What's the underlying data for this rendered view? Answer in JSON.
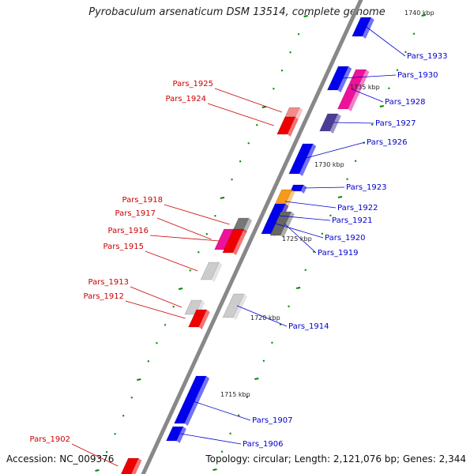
{
  "title": "Pyrobaculum arsenaticum DSM 13514, complete genome",
  "accession": "Accession: NC_009376",
  "topology": "Topology: circular; Length: 2,121,076 bp; Genes: 2,344",
  "colors": {
    "axis": "#888888",
    "forward_gene": "#0000ee",
    "reverse_gene": "#ee0000",
    "reverse_label": "#cc0000",
    "forward_label": "#0000cc",
    "tick": "#008800"
  },
  "kbp_marks": [
    "1740 kbp",
    "1735 kbp",
    "1730 kbp",
    "1725 kbp",
    "1720 kbp",
    "1715 kbp"
  ],
  "forward_genes": [
    {
      "label": "Pars_1933",
      "color": "#0000ee"
    },
    {
      "label": "Pars_1930",
      "color": "#0000ee"
    },
    {
      "label": "Pars_1928",
      "color": "#ee1199"
    },
    {
      "label": "Pars_1927",
      "color": "#4b3c96"
    },
    {
      "label": "Pars_1926",
      "color": "#0000ee"
    },
    {
      "label": "Pars_1923",
      "color": "#0000ee"
    },
    {
      "label": "Pars_1922",
      "color": "#f59a1c"
    },
    {
      "label": "Pars_1921",
      "color": "#0000ee"
    },
    {
      "label": "Pars_1920",
      "color": "#0000ee"
    },
    {
      "label": "Pars_1919",
      "color": "#666666"
    },
    {
      "label": "Pars_1914",
      "color": "#cccccc"
    },
    {
      "label": "Pars_1907",
      "color": "#0000ee"
    },
    {
      "label": "Pars_1906",
      "color": "#0000ee"
    }
  ],
  "reverse_genes": [
    {
      "label": "Pars_1925",
      "color": "#f28c8c"
    },
    {
      "label": "Pars_1924",
      "color": "#ee0000"
    },
    {
      "label": "Pars_1918",
      "color": "#777777"
    },
    {
      "label": "Pars_1917",
      "color": "#ee1199"
    },
    {
      "label": "Pars_1916",
      "color": "#ee0000"
    },
    {
      "label": "Pars_1915",
      "color": "#cccccc"
    },
    {
      "label": "Pars_1913",
      "color": "#cccccc"
    },
    {
      "label": "Pars_1912",
      "color": "#ee0000"
    },
    {
      "label": "Pars_1902",
      "color": "#ee0000"
    }
  ]
}
